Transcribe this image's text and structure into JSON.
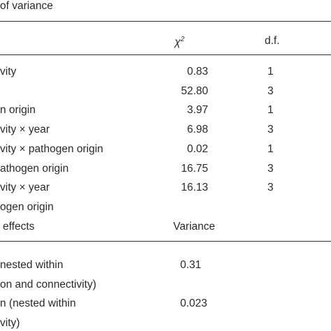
{
  "caption": "of variance",
  "header": {
    "chi_symbol": "χ",
    "chi_superscript": "2",
    "df": "d.f."
  },
  "fixed_rows": [
    {
      "label": "vity",
      "chi2": "0.83",
      "df": "1"
    },
    {
      "label": "",
      "chi2": "52.80",
      "df": "3"
    },
    {
      "label": "n origin",
      "chi2": "3.97",
      "df": "1"
    },
    {
      "label": "vity × year",
      "chi2": "6.98",
      "df": "3"
    },
    {
      "label": "vity × pathogen origin",
      "chi2": "0.02",
      "df": "1"
    },
    {
      "label": "athogen origin",
      "chi2": "16.75",
      "df": "3"
    },
    {
      "label": "vity × year",
      "chi2": "16.13",
      "df": "3"
    },
    {
      "label": "ogen origin"
    }
  ],
  "random_header": {
    "label": "effects",
    "variance": "Variance"
  },
  "random_rows": [
    {
      "label": "nested within",
      "variance": "0.31"
    },
    {
      "label": "on and connectivity)"
    },
    {
      "label": "n (nested within",
      "variance": "0.023"
    },
    {
      "label": "vity)"
    }
  ]
}
